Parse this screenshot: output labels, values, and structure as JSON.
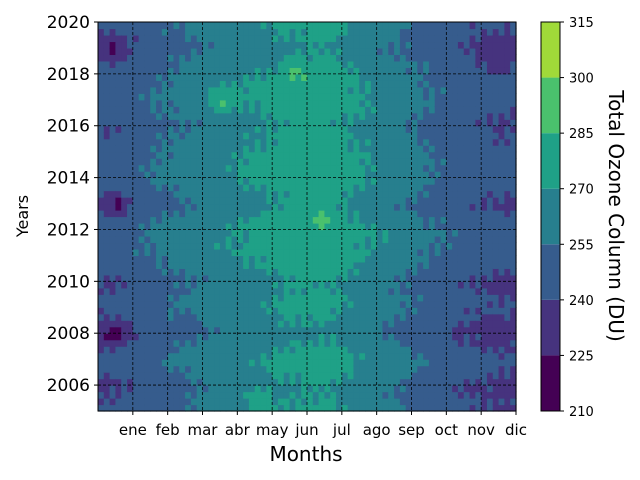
{
  "chart_data": {
    "type": "heatmap",
    "title": "",
    "xlabel": "Months",
    "ylabel": "Years",
    "colorbar_label": "Total Ozone Column (DU)",
    "x_tick_labels": [
      "ene",
      "feb",
      "mar",
      "abr",
      "may",
      "jun",
      "jul",
      "ago",
      "sep",
      "oct",
      "nov",
      "dic"
    ],
    "x_range": [
      0,
      12
    ],
    "y_ticks": [
      2006,
      2008,
      2010,
      2012,
      2014,
      2016,
      2018,
      2020
    ],
    "y_range": [
      2005,
      2020
    ],
    "grid": true,
    "colorbar": {
      "levels": [
        210,
        225,
        240,
        255,
        270,
        285,
        300,
        315
      ],
      "colors": [
        "#440154",
        "#46337e",
        "#365c8d",
        "#277f8e",
        "#1fa187",
        "#4ac16d",
        "#a0da39",
        "#dae319"
      ]
    },
    "month_means_du": [
      243,
      251,
      257,
      263,
      268,
      274,
      276,
      268,
      260,
      252,
      245,
      241
    ],
    "year_offsets_du": [
      {
        "year": 2005,
        "offset": -2
      },
      {
        "year": 2006,
        "offset": -5
      },
      {
        "year": 2007,
        "offset": 3
      },
      {
        "year": 2008,
        "offset": -8
      },
      {
        "year": 2009,
        "offset": 0
      },
      {
        "year": 2010,
        "offset": -4
      },
      {
        "year": 2011,
        "offset": 4
      },
      {
        "year": 2012,
        "offset": 6
      },
      {
        "year": 2013,
        "offset": -3
      },
      {
        "year": 2014,
        "offset": 5
      },
      {
        "year": 2015,
        "offset": 3
      },
      {
        "year": 2016,
        "offset": -2
      },
      {
        "year": 2017,
        "offset": 4
      },
      {
        "year": 2018,
        "offset": 2
      },
      {
        "year": 2019,
        "offset": -6
      },
      {
        "year": 2020,
        "offset": 0
      }
    ],
    "hotspots_du": [
      {
        "month": 6.4,
        "year": 2012.6,
        "value": 290
      },
      {
        "month": 5.7,
        "year": 2018.1,
        "value": 287
      },
      {
        "month": 3.6,
        "year": 2017.0,
        "value": 287
      },
      {
        "month": 4.6,
        "year": 2005.4,
        "value": 280
      },
      {
        "month": 0.5,
        "year": 2008.0,
        "value": 219
      },
      {
        "month": 0.5,
        "year": 2012.9,
        "value": 222
      },
      {
        "month": 0.5,
        "year": 2019.0,
        "value": 224
      },
      {
        "month": 11.4,
        "year": 2018.4,
        "value": 232
      }
    ]
  }
}
